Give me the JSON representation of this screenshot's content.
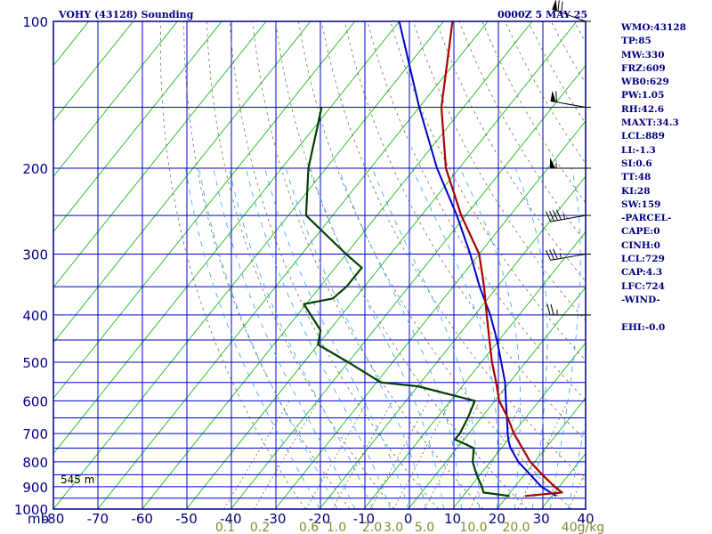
{
  "header": {
    "title": "VOHY (43128) Sounding",
    "timestamp": "0000Z  5 MAY 25"
  },
  "stats": [
    "WMO:43128",
    "TP:85",
    "MW:330",
    "FRZ:609",
    "WB0:629",
    "PW:1.05",
    "RH:42.6",
    "MAXT:34.3",
    "LCL:889",
    "LI:-1.3",
    "SI:0.6",
    "TT:48",
    "KI:28",
    "SW:159",
    "-PARCEL-",
    "CAPE:0",
    "CINH:0",
    "LCL:729",
    "CAP:4.3",
    "LFC:724",
    "-WIND-",
    "",
    "EHI:-0.0"
  ],
  "colors": {
    "frame": "#000080",
    "isobar": "#0000cc",
    "isotherm": "#00b000",
    "dry_adiabat": "#606030",
    "moist_adiabat": "#33a0ff",
    "temperature": "#aa0000",
    "dewpoint": "#004000",
    "parcel": "#0000cc",
    "axis_text": "#000080",
    "mixing_text": "#888833"
  },
  "chart_data": {
    "type": "skew-t log-p sounding",
    "title": "VOHY (43128) Sounding",
    "y_axis": {
      "scale": "log",
      "unit": "mb",
      "range": [
        1000,
        100
      ],
      "tick_labels": [
        "100",
        "200",
        "300",
        "400",
        "500",
        "600",
        "700",
        "800",
        "900",
        "1000"
      ]
    },
    "x_axis": {
      "unit": "°C",
      "unit_label": "mb",
      "range": [
        -80,
        40
      ],
      "skewed": true,
      "tick_labels": [
        "-80",
        "-70",
        "-60",
        "-50",
        "-40",
        "-30",
        "-20",
        "-10",
        "0",
        "10",
        "20",
        "30",
        "40"
      ]
    },
    "mixing_ratio_labels": [
      "0.1",
      "0.2",
      "0.6",
      "1.0",
      "2.0",
      "3.0",
      "5.0",
      "10.0",
      "20.0",
      "40g/kg"
    ],
    "surface_height_label": "545 m",
    "grid": true,
    "series": {
      "temperature": [
        [
          940,
          24
        ],
        [
          925,
          31.7
        ],
        [
          900,
          29
        ],
        [
          850,
          24
        ],
        [
          800,
          19
        ],
        [
          700,
          10.2
        ],
        [
          650,
          6
        ],
        [
          600,
          1
        ],
        [
          550,
          -3
        ],
        [
          500,
          -7.6
        ],
        [
          450,
          -12.2
        ],
        [
          400,
          -17.3
        ],
        [
          350,
          -23
        ],
        [
          300,
          -30
        ],
        [
          250,
          -41
        ],
        [
          200,
          -53
        ],
        [
          150,
          -65
        ],
        [
          100,
          -78
        ]
      ],
      "dewpoint": [
        [
          940,
          20.5
        ],
        [
          925,
          14
        ],
        [
          900,
          12.6
        ],
        [
          850,
          9.2
        ],
        [
          800,
          6
        ],
        [
          750,
          3.8
        ],
        [
          720,
          -2
        ],
        [
          700,
          -2
        ],
        [
          650,
          -3
        ],
        [
          600,
          -4.5
        ],
        [
          560,
          -20
        ],
        [
          550,
          -29
        ],
        [
          500,
          -40
        ],
        [
          460,
          -50
        ],
        [
          430,
          -52
        ],
        [
          380,
          -60.5
        ],
        [
          370,
          -55
        ],
        [
          350,
          -54
        ],
        [
          320,
          -54
        ],
        [
          300,
          -60
        ],
        [
          250,
          -76
        ],
        [
          200,
          -84
        ],
        [
          150,
          -92
        ]
      ],
      "parcel": [
        [
          940,
          31
        ],
        [
          900,
          26
        ],
        [
          850,
          21.3
        ],
        [
          800,
          16.3
        ],
        [
          750,
          12.1
        ],
        [
          729,
          10.6
        ],
        [
          700,
          8.8
        ],
        [
          650,
          5.8
        ],
        [
          600,
          2.5
        ],
        [
          550,
          -1
        ],
        [
          500,
          -5.5
        ],
        [
          450,
          -10.5
        ],
        [
          400,
          -16.5
        ],
        [
          350,
          -24
        ],
        [
          300,
          -32
        ],
        [
          250,
          -42
        ],
        [
          200,
          -55
        ],
        [
          150,
          -70
        ],
        [
          100,
          -90
        ]
      ]
    },
    "wind_barbs": [
      {
        "p": 100,
        "dir": 290,
        "kt": 70
      },
      {
        "p": 150,
        "dir": 280,
        "kt": 60
      },
      {
        "p": 200,
        "dir": 270,
        "kt": 55
      },
      {
        "p": 250,
        "dir": 260,
        "kt": 45
      },
      {
        "p": 300,
        "dir": 260,
        "kt": 35
      },
      {
        "p": 400,
        "dir": 270,
        "kt": 25
      }
    ]
  }
}
